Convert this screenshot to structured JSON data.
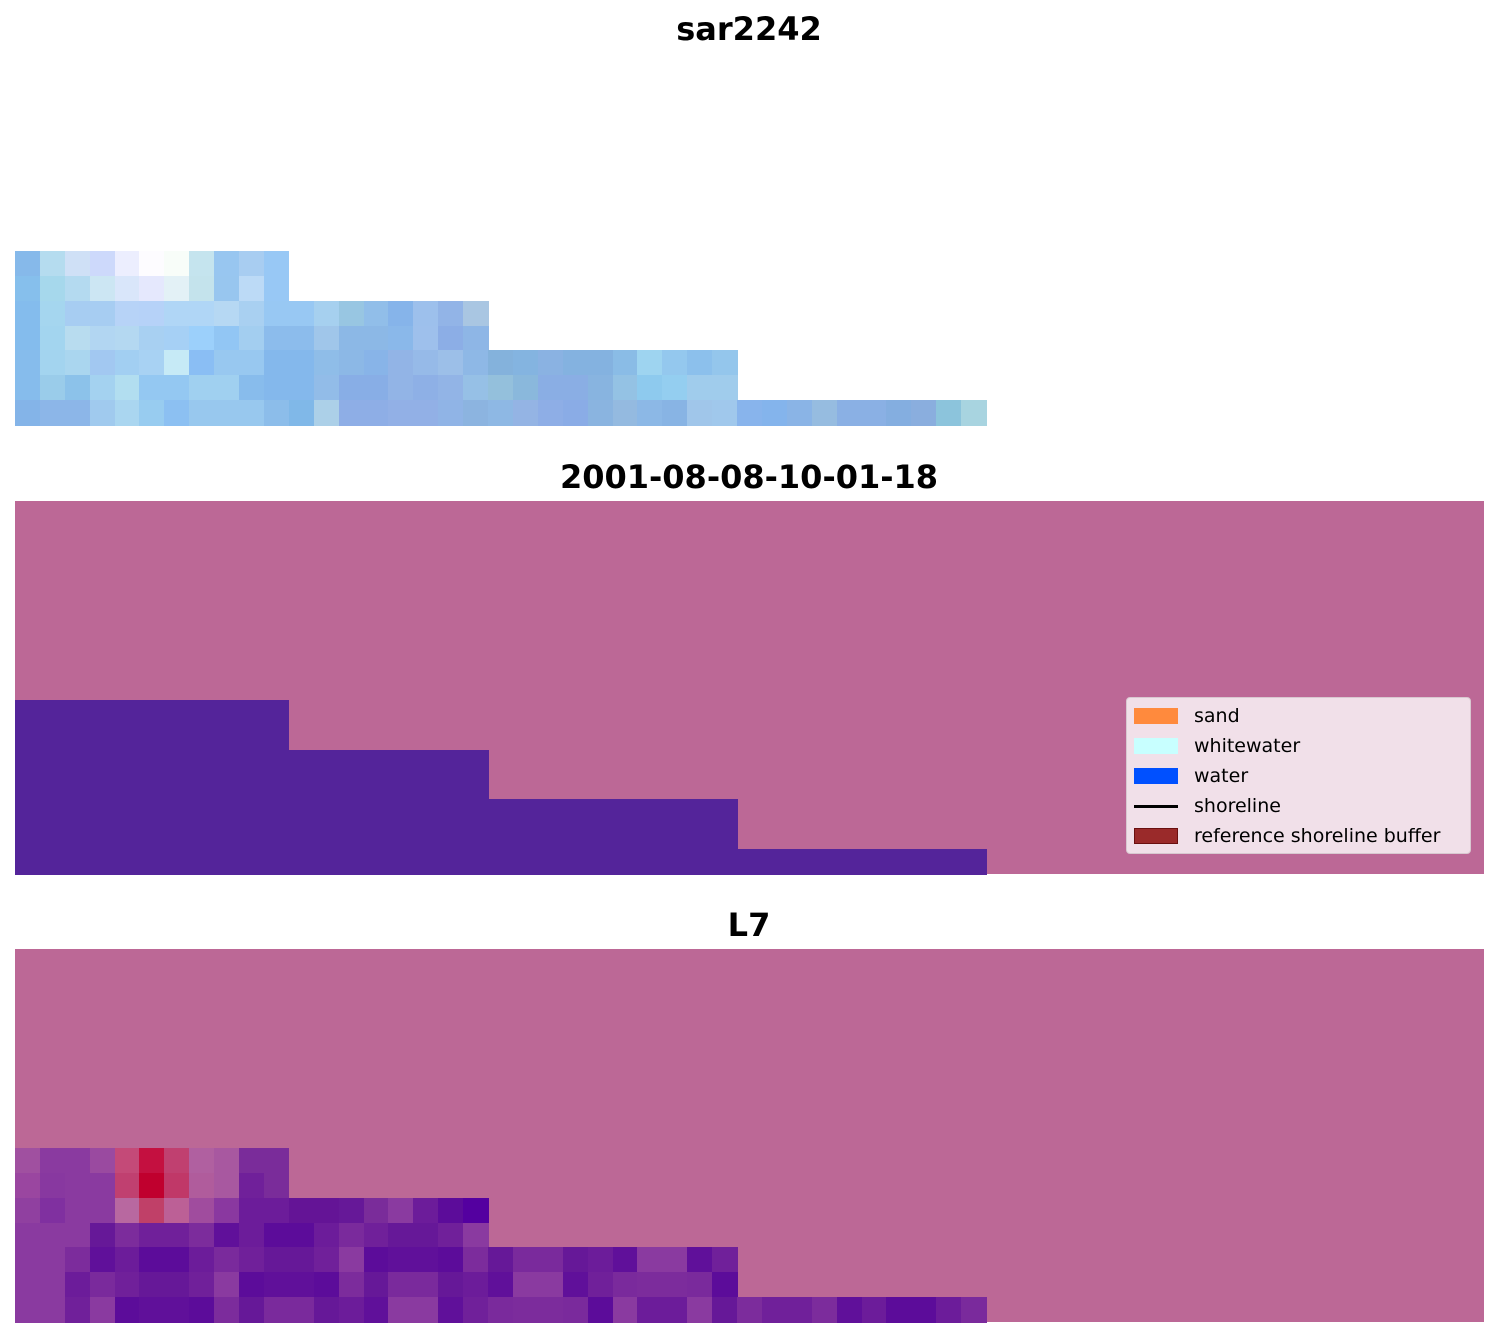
{
  "panels": [
    {
      "title": "sar2242"
    },
    {
      "title": "2001-08-08-10-01-18"
    },
    {
      "title": "L7"
    }
  ],
  "legend": {
    "items": [
      {
        "label": "sand",
        "color": "#ff8a3d",
        "kind": "patch"
      },
      {
        "label": "whitewater",
        "color": "#c8ffff",
        "kind": "patch"
      },
      {
        "label": "water",
        "color": "#0050ff",
        "kind": "patch"
      },
      {
        "label": "shoreline",
        "color": "#000000",
        "kind": "line"
      },
      {
        "label": "reference shoreline buffer",
        "color": "#9a2a2a",
        "kind": "patch"
      }
    ]
  },
  "colors": {
    "land_overlay": "#bc6896",
    "water_class": "#54249a"
  },
  "image_rgb_rows": [
    [
      "#86b9ea",
      "#b5dcef",
      "#cfe0f6",
      "#cdd9fb",
      "#eceefe",
      "#fdfcff",
      "#f8fdf9",
      "#c5e4ee",
      "#98c6f0",
      "#a8cdf1",
      "#98c8f5"
    ],
    [
      "#86bfec",
      "#a6d8ec",
      "#b4daf0",
      "#cce6f3",
      "#d9e6fa",
      "#e5e8fd",
      "#e3f1f6",
      "#c4e3ec",
      "#98c6ef",
      "#bcdaf6",
      "#98c8f5"
    ],
    [
      "#84bced",
      "#a5d6ef",
      "#a7cdf2",
      "#a7cdf2",
      "#b7d3f7",
      "#b6d2f8",
      "#b0d6f6",
      "#b0d6f6",
      "#b6d8f3",
      "#a9d0f1",
      "#98c8f3",
      "#98c8f3",
      "#a6d0ef",
      "#98c6e2",
      "#91bee9",
      "#86b4ea",
      "#9dc0ec",
      "#92b4e7",
      "#a9c6e2"
    ],
    [
      "#84bced",
      "#a3d5ef",
      "#b8dcef",
      "#b2d6f2",
      "#b4d8f1",
      "#a8d0f2",
      "#a6d0f5",
      "#9cd0fb",
      "#92c6f4",
      "#a3cef0",
      "#8cbcec",
      "#8cbcec",
      "#a0c6ea",
      "#8cb8e6",
      "#8cb8e6",
      "#8ab8ea",
      "#9ec0ec",
      "#8caee6",
      "#8eb6e6"
    ],
    [
      "#86bcec",
      "#a3d4ef",
      "#aad6ef",
      "#a2c8f1",
      "#a2cff2",
      "#a8d2f3",
      "#c6eaf6",
      "#8abef4",
      "#98c8f0",
      "#98c8f0",
      "#84b8ec",
      "#84b8ec",
      "#8fbde8",
      "#8cb8e6",
      "#88b4e8",
      "#92b4e6",
      "#96bae8",
      "#9cbfe8",
      "#8eb8e6",
      "#84b2dc",
      "#84b4e0",
      "#8ab2e2",
      "#84b2e0",
      "#84b2e0",
      "#8abce6",
      "#9ed4f0",
      "#94c8ee",
      "#8cc0ec",
      "#94c6ec"
    ],
    [
      "#86bcec",
      "#9accea",
      "#8cc2ea",
      "#a4d2f0",
      "#b2def0",
      "#94c8f2",
      "#94c8f2",
      "#a0d0f0",
      "#a0d0f0",
      "#88bcec",
      "#84b8ec",
      "#84b8ec",
      "#92bce8",
      "#88aee6",
      "#88aee6",
      "#92b4e6",
      "#8eb0e6",
      "#92b4e6",
      "#96c0e6",
      "#94c0dc",
      "#8ab8dc",
      "#8aaee4",
      "#8aaee4",
      "#88b4e0",
      "#94c2e4",
      "#8ecaee",
      "#94cef0",
      "#a0ccec",
      "#a0ccec"
    ],
    [
      "#84b4e8",
      "#8cb6e8",
      "#8cb6e8",
      "#a0caee",
      "#aad6f0",
      "#98ccf0",
      "#8cc0f2",
      "#98c8ee",
      "#98c8ee",
      "#98c8ee",
      "#8cbdea",
      "#80b8e8",
      "#acd0e8",
      "#8eaee6",
      "#8eaee6",
      "#92b0e6",
      "#92b0e6",
      "#90b4e6",
      "#8cb4e0",
      "#8eb8e4",
      "#94b4e4",
      "#8eaee6",
      "#8aace6",
      "#8ab4e0",
      "#94bae0",
      "#8cb8e6",
      "#88b4e4",
      "#a0c6ea",
      "#a0c8ec",
      "#88b4ec",
      "#84b4ec",
      "#8ab4e6",
      "#96bce0",
      "#8ab0e4",
      "#8ab0e4",
      "#84aee0",
      "#8aaede",
      "#8cc4dc",
      "#a8d4e0"
    ]
  ],
  "overlay_rows": [
    [
      "#a050a0",
      "#8a3aa0",
      "#8a3aa0",
      "#9a4aa0",
      "#c44a78",
      "#c41040",
      "#c04070",
      "#b060a0",
      "#a858a0",
      "#7a2c9a",
      "#7a2c9a"
    ],
    [
      "#9a46a0",
      "#8838a0",
      "#8a3aa0",
      "#8a3aa0",
      "#c04070",
      "#c0002e",
      "#c03868",
      "#b05c9c",
      "#a858a0",
      "#70209a",
      "#7a2c9a"
    ],
    [
      "#9040a0",
      "#8030a0",
      "#8a3aa0",
      "#8a3aa0",
      "#b868a0",
      "#c04068",
      "#bc6096",
      "#a04c9e",
      "#8a38a0",
      "#6c1c9a",
      "#6c1c9a",
      "#641496",
      "#641496",
      "#661898",
      "#7a2c9a",
      "#8a3aa0",
      "#6c1c9a",
      "#5c0c9a",
      "#5400a0"
    ]
  ]
}
